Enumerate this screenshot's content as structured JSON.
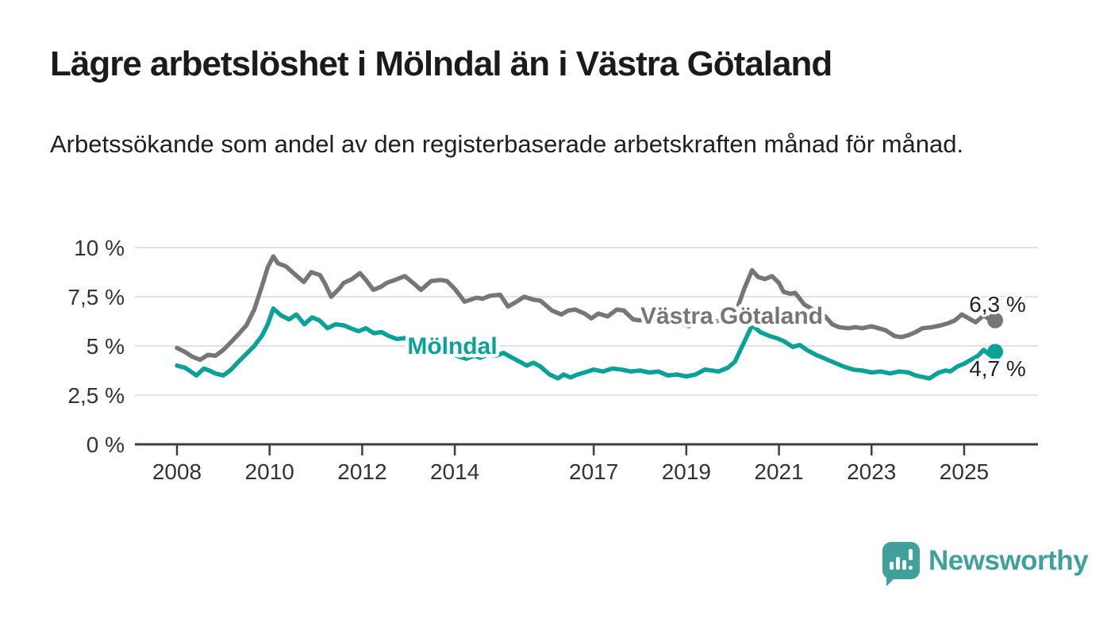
{
  "header": {
    "title": "Lägre arbetslöshet i Mölndal än i Västra Götaland",
    "subtitle": "Arbetssökande som andel av den registerbaserade arbetskraften månad för månad."
  },
  "branding": {
    "logo_text": "Newsworthy",
    "logo_icon": "bar-chart-speech-bubble-icon",
    "logo_color": "#41a09b"
  },
  "chart_data": {
    "type": "line",
    "title": "Lägre arbetslöshet i Mölndal än i Västra Götaland",
    "xlabel": "",
    "ylabel": "",
    "x_unit": "decimal years (monthly observations)",
    "xlim": [
      2007.9,
      2026.6
    ],
    "ylim": [
      0,
      10
    ],
    "grid": "horizontal",
    "legend_position": "inline-labels-on-lines",
    "y_ticks": [
      {
        "value": 0,
        "label": "0 %"
      },
      {
        "value": 2.5,
        "label": "2,5 %"
      },
      {
        "value": 5,
        "label": "5 %"
      },
      {
        "value": 7.5,
        "label": "7,5 %"
      },
      {
        "value": 10,
        "label": "10 %"
      }
    ],
    "x_ticks": [
      {
        "value": 2008,
        "label": "2008"
      },
      {
        "value": 2010,
        "label": "2010"
      },
      {
        "value": 2012,
        "label": "2012"
      },
      {
        "value": 2014,
        "label": "2014"
      },
      {
        "value": 2017,
        "label": "2017"
      },
      {
        "value": 2019,
        "label": "2019"
      },
      {
        "value": 2021,
        "label": "2021"
      },
      {
        "value": 2023,
        "label": "2023"
      },
      {
        "value": 2025,
        "label": "2025"
      }
    ],
    "series": [
      {
        "name": "Västra Götaland",
        "color": "#767676",
        "end_value": 6.3,
        "end_label": "6,3 %",
        "points": [
          [
            2008.0,
            4.9
          ],
          [
            2008.17,
            4.7
          ],
          [
            2008.33,
            4.45
          ],
          [
            2008.5,
            4.3
          ],
          [
            2008.67,
            4.55
          ],
          [
            2008.83,
            4.5
          ],
          [
            2009.0,
            4.8
          ],
          [
            2009.17,
            5.2
          ],
          [
            2009.33,
            5.6
          ],
          [
            2009.5,
            6.05
          ],
          [
            2009.67,
            6.85
          ],
          [
            2009.83,
            8.0
          ],
          [
            2009.96,
            9.0
          ],
          [
            2010.08,
            9.55
          ],
          [
            2010.18,
            9.2
          ],
          [
            2010.35,
            9.05
          ],
          [
            2010.47,
            8.8
          ],
          [
            2010.64,
            8.45
          ],
          [
            2010.74,
            8.25
          ],
          [
            2010.9,
            8.75
          ],
          [
            2011.09,
            8.6
          ],
          [
            2011.2,
            8.15
          ],
          [
            2011.33,
            7.5
          ],
          [
            2011.5,
            7.9
          ],
          [
            2011.6,
            8.2
          ],
          [
            2011.78,
            8.4
          ],
          [
            2011.95,
            8.7
          ],
          [
            2012.1,
            8.3
          ],
          [
            2012.24,
            7.85
          ],
          [
            2012.4,
            8.0
          ],
          [
            2012.53,
            8.2
          ],
          [
            2012.7,
            8.35
          ],
          [
            2012.92,
            8.55
          ],
          [
            2013.1,
            8.2
          ],
          [
            2013.27,
            7.85
          ],
          [
            2013.49,
            8.3
          ],
          [
            2013.69,
            8.35
          ],
          [
            2013.83,
            8.3
          ],
          [
            2014.0,
            7.9
          ],
          [
            2014.21,
            7.25
          ],
          [
            2014.47,
            7.45
          ],
          [
            2014.6,
            7.4
          ],
          [
            2014.76,
            7.55
          ],
          [
            2014.98,
            7.6
          ],
          [
            2015.15,
            7.0
          ],
          [
            2015.3,
            7.2
          ],
          [
            2015.5,
            7.5
          ],
          [
            2015.7,
            7.35
          ],
          [
            2015.85,
            7.3
          ],
          [
            2016.1,
            6.8
          ],
          [
            2016.3,
            6.6
          ],
          [
            2016.45,
            6.8
          ],
          [
            2016.6,
            6.85
          ],
          [
            2016.8,
            6.65
          ],
          [
            2016.95,
            6.4
          ],
          [
            2017.1,
            6.65
          ],
          [
            2017.3,
            6.5
          ],
          [
            2017.5,
            6.85
          ],
          [
            2017.65,
            6.8
          ],
          [
            2017.85,
            6.35
          ],
          [
            2018.0,
            6.3
          ],
          [
            2018.15,
            6.5
          ],
          [
            2018.35,
            6.3
          ],
          [
            2018.5,
            6.4
          ],
          [
            2018.7,
            6.35
          ],
          [
            2018.9,
            6.15
          ],
          [
            2019.05,
            6.0
          ],
          [
            2019.25,
            6.3
          ],
          [
            2019.45,
            6.15
          ],
          [
            2019.6,
            6.25
          ],
          [
            2019.8,
            6.3
          ],
          [
            2019.95,
            6.45
          ],
          [
            2020.1,
            6.9
          ],
          [
            2020.25,
            7.9
          ],
          [
            2020.42,
            8.85
          ],
          [
            2020.55,
            8.5
          ],
          [
            2020.7,
            8.4
          ],
          [
            2020.85,
            8.55
          ],
          [
            2021.0,
            8.2
          ],
          [
            2021.1,
            7.75
          ],
          [
            2021.25,
            7.65
          ],
          [
            2021.35,
            7.7
          ],
          [
            2021.55,
            7.1
          ],
          [
            2021.7,
            6.9
          ],
          [
            2021.85,
            6.65
          ],
          [
            2022.0,
            6.5
          ],
          [
            2022.15,
            6.1
          ],
          [
            2022.3,
            5.95
          ],
          [
            2022.5,
            5.9
          ],
          [
            2022.65,
            5.95
          ],
          [
            2022.8,
            5.9
          ],
          [
            2023.0,
            6.0
          ],
          [
            2023.15,
            5.9
          ],
          [
            2023.3,
            5.8
          ],
          [
            2023.5,
            5.5
          ],
          [
            2023.65,
            5.45
          ],
          [
            2023.8,
            5.55
          ],
          [
            2023.95,
            5.7
          ],
          [
            2024.1,
            5.9
          ],
          [
            2024.3,
            5.95
          ],
          [
            2024.5,
            6.05
          ],
          [
            2024.65,
            6.15
          ],
          [
            2024.8,
            6.3
          ],
          [
            2024.95,
            6.6
          ],
          [
            2025.1,
            6.4
          ],
          [
            2025.25,
            6.2
          ],
          [
            2025.42,
            6.55
          ],
          [
            2025.55,
            6.35
          ],
          [
            2025.67,
            6.3
          ]
        ]
      },
      {
        "name": "Mölndal",
        "color": "#0aa296",
        "end_value": 4.7,
        "end_label": "4,7 %",
        "points": [
          [
            2008.0,
            4.0
          ],
          [
            2008.17,
            3.9
          ],
          [
            2008.33,
            3.65
          ],
          [
            2008.42,
            3.5
          ],
          [
            2008.58,
            3.85
          ],
          [
            2008.7,
            3.75
          ],
          [
            2008.83,
            3.6
          ],
          [
            2009.0,
            3.5
          ],
          [
            2009.17,
            3.8
          ],
          [
            2009.33,
            4.2
          ],
          [
            2009.5,
            4.6
          ],
          [
            2009.67,
            5.0
          ],
          [
            2009.83,
            5.5
          ],
          [
            2009.96,
            6.1
          ],
          [
            2010.08,
            6.9
          ],
          [
            2010.25,
            6.55
          ],
          [
            2010.42,
            6.35
          ],
          [
            2010.58,
            6.6
          ],
          [
            2010.75,
            6.1
          ],
          [
            2010.92,
            6.45
          ],
          [
            2011.08,
            6.3
          ],
          [
            2011.25,
            5.9
          ],
          [
            2011.42,
            6.1
          ],
          [
            2011.6,
            6.05
          ],
          [
            2011.75,
            5.9
          ],
          [
            2011.92,
            5.75
          ],
          [
            2012.08,
            5.9
          ],
          [
            2012.25,
            5.65
          ],
          [
            2012.42,
            5.7
          ],
          [
            2012.58,
            5.5
          ],
          [
            2012.75,
            5.35
          ],
          [
            2012.92,
            5.4
          ],
          [
            2013.08,
            5.2
          ],
          [
            2013.3,
            5.1
          ],
          [
            2013.5,
            4.95
          ],
          [
            2013.7,
            4.85
          ],
          [
            2013.9,
            4.65
          ],
          [
            2014.1,
            4.45
          ],
          [
            2014.25,
            4.35
          ],
          [
            2014.42,
            4.5
          ],
          [
            2014.55,
            4.4
          ],
          [
            2014.7,
            4.55
          ],
          [
            2014.9,
            4.5
          ],
          [
            2015.05,
            4.65
          ],
          [
            2015.2,
            4.45
          ],
          [
            2015.4,
            4.2
          ],
          [
            2015.55,
            4.0
          ],
          [
            2015.7,
            4.15
          ],
          [
            2015.85,
            3.95
          ],
          [
            2016.05,
            3.55
          ],
          [
            2016.23,
            3.35
          ],
          [
            2016.35,
            3.55
          ],
          [
            2016.5,
            3.4
          ],
          [
            2016.65,
            3.55
          ],
          [
            2016.8,
            3.65
          ],
          [
            2017.0,
            3.8
          ],
          [
            2017.2,
            3.7
          ],
          [
            2017.4,
            3.85
          ],
          [
            2017.6,
            3.8
          ],
          [
            2017.8,
            3.7
          ],
          [
            2018.0,
            3.75
          ],
          [
            2018.2,
            3.65
          ],
          [
            2018.4,
            3.7
          ],
          [
            2018.6,
            3.5
          ],
          [
            2018.8,
            3.55
          ],
          [
            2019.0,
            3.45
          ],
          [
            2019.2,
            3.55
          ],
          [
            2019.4,
            3.8
          ],
          [
            2019.55,
            3.75
          ],
          [
            2019.7,
            3.7
          ],
          [
            2019.9,
            3.9
          ],
          [
            2020.05,
            4.2
          ],
          [
            2020.25,
            5.2
          ],
          [
            2020.42,
            6.05
          ],
          [
            2020.6,
            5.7
          ],
          [
            2020.8,
            5.5
          ],
          [
            2020.95,
            5.4
          ],
          [
            2021.1,
            5.25
          ],
          [
            2021.3,
            4.95
          ],
          [
            2021.45,
            5.05
          ],
          [
            2021.6,
            4.8
          ],
          [
            2021.8,
            4.55
          ],
          [
            2022.0,
            4.35
          ],
          [
            2022.2,
            4.15
          ],
          [
            2022.4,
            3.95
          ],
          [
            2022.6,
            3.8
          ],
          [
            2022.8,
            3.75
          ],
          [
            2023.0,
            3.65
          ],
          [
            2023.2,
            3.7
          ],
          [
            2023.4,
            3.6
          ],
          [
            2023.6,
            3.7
          ],
          [
            2023.8,
            3.65
          ],
          [
            2023.95,
            3.5
          ],
          [
            2024.15,
            3.4
          ],
          [
            2024.25,
            3.35
          ],
          [
            2024.45,
            3.65
          ],
          [
            2024.6,
            3.75
          ],
          [
            2024.7,
            3.7
          ],
          [
            2024.85,
            3.95
          ],
          [
            2025.0,
            4.1
          ],
          [
            2025.15,
            4.3
          ],
          [
            2025.3,
            4.5
          ],
          [
            2025.42,
            4.8
          ],
          [
            2025.55,
            4.55
          ],
          [
            2025.67,
            4.7
          ]
        ]
      }
    ]
  }
}
